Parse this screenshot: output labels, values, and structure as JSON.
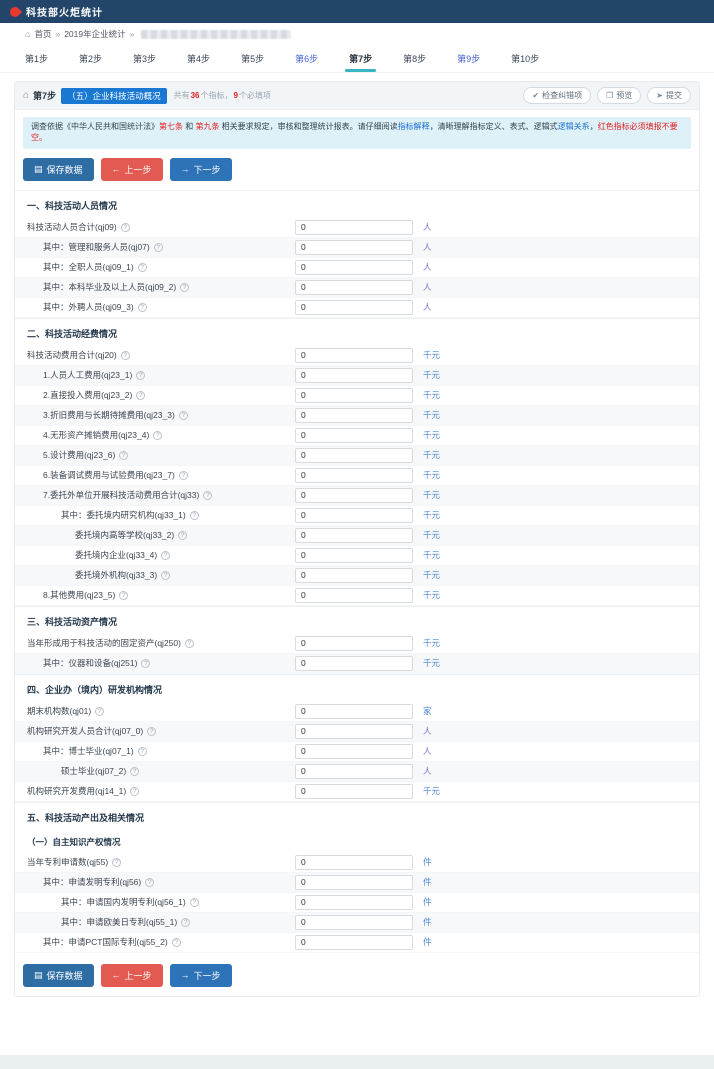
{
  "navbar": {
    "title": "科技部火炬统计"
  },
  "breadcrumb": {
    "home": "首页",
    "sep1": "»",
    "item1": "2019年企业统计",
    "sep2": "»"
  },
  "tabs": [
    {
      "label": "第1步",
      "state": "normal"
    },
    {
      "label": "第2步",
      "state": "normal"
    },
    {
      "label": "第3步",
      "state": "normal"
    },
    {
      "label": "第4步",
      "state": "normal"
    },
    {
      "label": "第5步",
      "state": "normal"
    },
    {
      "label": "第6步",
      "state": "visited"
    },
    {
      "label": "第7步",
      "state": "active"
    },
    {
      "label": "第8步",
      "state": "normal"
    },
    {
      "label": "第9步",
      "state": "visited"
    },
    {
      "label": "第10步",
      "state": "normal"
    }
  ],
  "panel_header": {
    "step": "第7步",
    "badge": "（五）企业科技活动概况",
    "meta_prefix": "共有",
    "indicator_count": "36",
    "meta_mid": "个指标，",
    "required_count": "9",
    "meta_suffix": "个必填项",
    "actions": [
      {
        "label": "检查纠错项",
        "icon": "check-circle-icon",
        "glyph": "✔"
      },
      {
        "label": "预览",
        "icon": "preview-icon",
        "glyph": "❐"
      },
      {
        "label": "提交",
        "icon": "submit-icon",
        "glyph": "➤"
      }
    ]
  },
  "notice": {
    "segments": [
      {
        "text": "调查依据《中华人民共和国统计法》",
        "style": "normal"
      },
      {
        "text": "第七条",
        "style": "red"
      },
      {
        "text": " 和 ",
        "style": "normal"
      },
      {
        "text": "第九条",
        "style": "red"
      },
      {
        "text": " 相关要求规定，审核和整理统计报表。请仔细阅读",
        "style": "normal"
      },
      {
        "text": "指标解释",
        "style": "blue"
      },
      {
        "text": "，清晰理解指标定义、表式、逻辑式",
        "style": "normal"
      },
      {
        "text": "逻辑关系",
        "style": "blue"
      },
      {
        "text": "，",
        "style": "normal"
      },
      {
        "text": "红色指标必须填报不要空。",
        "style": "red"
      }
    ]
  },
  "toolbar": {
    "save": "保存数据",
    "prev": "上一步",
    "next": "下一步"
  },
  "sections": [
    {
      "title": "一、科技活动人员情况",
      "rows": [
        {
          "label": "科技活动人员合计(qj09)",
          "value": "0",
          "unit": "人",
          "indent": 0
        },
        {
          "label": "其中：管理和服务人员(qj07)",
          "value": "0",
          "unit": "人",
          "indent": 1
        },
        {
          "label": "其中：全职人员(qj09_1)",
          "value": "0",
          "unit": "人",
          "indent": 1
        },
        {
          "label": "其中：本科毕业及以上人员(qj09_2)",
          "value": "0",
          "unit": "人",
          "indent": 1
        },
        {
          "label": "其中：外聘人员(qj09_3)",
          "value": "0",
          "unit": "人",
          "indent": 1
        }
      ]
    },
    {
      "title": "二、科技活动经费情况",
      "rows": [
        {
          "label": "科技活动费用合计(qj20)",
          "value": "0",
          "unit": "千元",
          "indent": 0
        },
        {
          "label": "1.人员人工费用(qj23_1)",
          "value": "0",
          "unit": "千元",
          "indent": 1
        },
        {
          "label": "2.直接投入费用(qj23_2)",
          "value": "0",
          "unit": "千元",
          "indent": 1
        },
        {
          "label": "3.折旧费用与长期待摊费用(qj23_3)",
          "value": "0",
          "unit": "千元",
          "indent": 1
        },
        {
          "label": "4.无形资产摊销费用(qj23_4)",
          "value": "0",
          "unit": "千元",
          "indent": 1
        },
        {
          "label": "5.设计费用(qj23_6)",
          "value": "0",
          "unit": "千元",
          "indent": 1
        },
        {
          "label": "6.装备调试费用与试验费用(qj23_7)",
          "value": "0",
          "unit": "千元",
          "indent": 1
        },
        {
          "label": "7.委托外单位开展科技活动费用合计(qj33)",
          "value": "0",
          "unit": "千元",
          "indent": 1
        },
        {
          "label": "其中：委托境内研究机构(qj33_1)",
          "value": "0",
          "unit": "千元",
          "indent": 2
        },
        {
          "label": "委托境内高等学校(qj33_2)",
          "value": "0",
          "unit": "千元",
          "indent": 3
        },
        {
          "label": "委托境内企业(qj33_4)",
          "value": "0",
          "unit": "千元",
          "indent": 3
        },
        {
          "label": "委托境外机构(qj33_3)",
          "value": "0",
          "unit": "千元",
          "indent": 3
        },
        {
          "label": "8.其他费用(qj23_5)",
          "value": "0",
          "unit": "千元",
          "indent": 1
        }
      ]
    },
    {
      "title": "三、科技活动资产情况",
      "rows": [
        {
          "label": "当年形成用于科技活动的固定资产(qj250)",
          "value": "0",
          "unit": "千元",
          "indent": 0
        },
        {
          "label": "其中：仪器和设备(qj251)",
          "value": "0",
          "unit": "千元",
          "indent": 1
        }
      ]
    },
    {
      "title": "四、企业办（境内）研发机构情况",
      "rows": [
        {
          "label": "期末机构数(qj01)",
          "value": "0",
          "unit": "家",
          "indent": 0
        },
        {
          "label": "机构研究开发人员合计(qj07_0)",
          "value": "0",
          "unit": "人",
          "indent": 0
        },
        {
          "label": "其中：博士毕业(qj07_1)",
          "value": "0",
          "unit": "人",
          "indent": 1
        },
        {
          "label": "硕士毕业(qj07_2)",
          "value": "0",
          "unit": "人",
          "indent": 2
        },
        {
          "label": "机构研究开发费用(qj14_1)",
          "value": "0",
          "unit": "千元",
          "indent": 0
        }
      ]
    },
    {
      "title": "五、科技活动产出及相关情况",
      "rows": [
        {
          "type": "subheader",
          "label": "（一）自主知识产权情况"
        },
        {
          "label": "当年专利申请数(qj55)",
          "value": "0",
          "unit": "件",
          "indent": 0
        },
        {
          "label": "其中：申请发明专利(qj56)",
          "value": "0",
          "unit": "件",
          "indent": 1
        },
        {
          "label": "其中：申请国内发明专利(qj56_1)",
          "value": "0",
          "unit": "件",
          "indent": 2
        },
        {
          "label": "其中：申请欧美日专利(qj55_1)",
          "value": "0",
          "unit": "件",
          "indent": 2
        },
        {
          "label": "其中：申请PCT国际专利(qj55_2)",
          "value": "0",
          "unit": "件",
          "indent": 1
        }
      ]
    }
  ],
  "colors": {
    "navbar_bg": "#234569",
    "accent_teal": "#38b6c6",
    "badge_blue": "#1878d2",
    "btn_save": "#2e6da4",
    "btn_prev": "#e25a52",
    "btn_next": "#2e72b8",
    "unit_person": "#7d6fd8",
    "unit_other": "#4a86d8",
    "notice_bg": "#dff1f8"
  }
}
